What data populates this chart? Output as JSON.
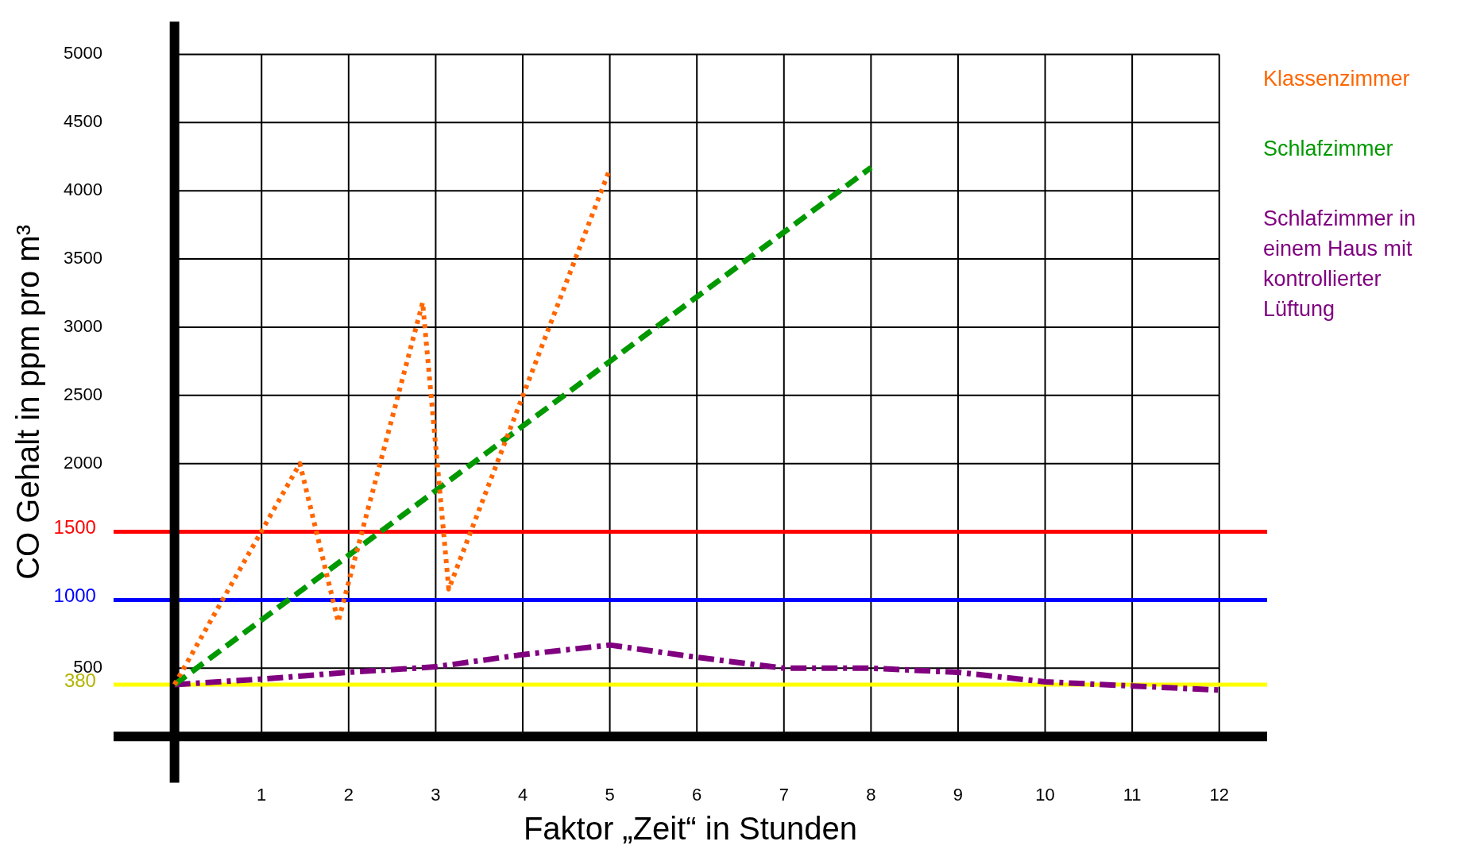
{
  "chart_data": {
    "type": "line",
    "xlabel": "Faktor „Zeit“ in Stunden",
    "ylabel": "CO Gehalt in ppm pro m³",
    "xlim": [
      -0.7,
      12.55
    ],
    "ylim": [
      -340,
      5240
    ],
    "xticks": [
      1,
      2,
      3,
      4,
      5,
      6,
      7,
      8,
      9,
      10,
      11,
      12
    ],
    "yticks": [
      500,
      {
        "value": 1000,
        "label": null
      },
      {
        "value": 1500,
        "label": null
      },
      2000,
      2500,
      3000,
      3500,
      4000,
      4500,
      5000
    ],
    "grid": true,
    "legend": "right",
    "marker": "none",
    "series": [
      {
        "name": "Klassenzimmer",
        "color": "#ff6600",
        "line_style": "dotted",
        "x": [
          0,
          1.44,
          1.88,
          2.85,
          3.15,
          5
        ],
        "values": [
          380,
          2000,
          840,
          3180,
          1080,
          4160
        ]
      },
      {
        "name": "Schlafzimmer",
        "color": "#009900",
        "line_style": "dashed",
        "x": [
          0,
          8
        ],
        "values": [
          380,
          4170
        ]
      },
      {
        "name": "Schlafzimmer in einem Haus mit kontrollierter Lüftung",
        "color": "#800080",
        "line_style": "dashdot",
        "x": [
          0,
          1,
          2,
          3,
          4,
          5,
          6,
          7,
          8,
          9,
          10,
          11,
          12
        ],
        "values": [
          380,
          420,
          470,
          510,
          600,
          670,
          580,
          500,
          500,
          470,
          400,
          370,
          340
        ]
      }
    ],
    "ref_lines": [
      {
        "axis": "y",
        "value": 1500,
        "label": "1500",
        "color": "#ff0000"
      },
      {
        "axis": "y",
        "value": 1000,
        "label": "1000",
        "color": "#0000ff"
      },
      {
        "axis": "y",
        "value": 380,
        "label": "380",
        "color": "#ffff00"
      }
    ]
  }
}
